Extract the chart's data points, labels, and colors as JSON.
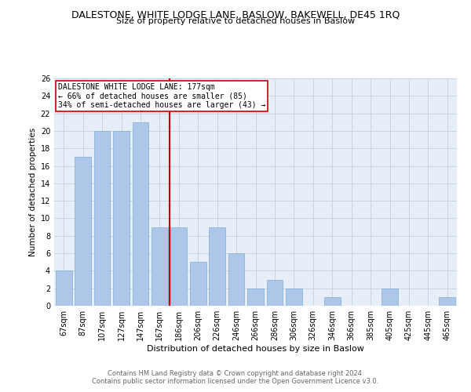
{
  "title": "DALESTONE, WHITE LODGE LANE, BASLOW, BAKEWELL, DE45 1RQ",
  "subtitle": "Size of property relative to detached houses in Baslow",
  "xlabel": "Distribution of detached houses by size in Baslow",
  "ylabel": "Number of detached properties",
  "footer_line1": "Contains HM Land Registry data © Crown copyright and database right 2024.",
  "footer_line2": "Contains public sector information licensed under the Open Government Licence v3.0.",
  "bin_labels": [
    "67sqm",
    "87sqm",
    "107sqm",
    "127sqm",
    "147sqm",
    "167sqm",
    "186sqm",
    "206sqm",
    "226sqm",
    "246sqm",
    "266sqm",
    "286sqm",
    "306sqm",
    "326sqm",
    "346sqm",
    "366sqm",
    "385sqm",
    "405sqm",
    "425sqm",
    "445sqm",
    "465sqm"
  ],
  "values": [
    4,
    17,
    20,
    20,
    21,
    9,
    9,
    5,
    9,
    6,
    2,
    3,
    2,
    0,
    1,
    0,
    0,
    2,
    0,
    0,
    1
  ],
  "bar_color": "#aec6e8",
  "bar_edge_color": "#7aaed6",
  "vline_x": 5.5,
  "vline_color": "#cc0000",
  "annotation_text": "DALESTONE WHITE LODGE LANE: 177sqm\n← 66% of detached houses are smaller (85)\n34% of semi-detached houses are larger (43) →",
  "annotation_box_color": "#ffffff",
  "annotation_box_edge_color": "#cc0000",
  "ylim": [
    0,
    26
  ],
  "yticks": [
    0,
    2,
    4,
    6,
    8,
    10,
    12,
    14,
    16,
    18,
    20,
    22,
    24,
    26
  ],
  "grid_color": "#c8d4e8",
  "background_color": "#e8eef8",
  "title_fontsize": 9,
  "subtitle_fontsize": 8,
  "ylabel_fontsize": 7.5,
  "xlabel_fontsize": 8,
  "tick_fontsize": 7,
  "annotation_fontsize": 7,
  "footer_fontsize": 6,
  "footer_color": "#666666"
}
